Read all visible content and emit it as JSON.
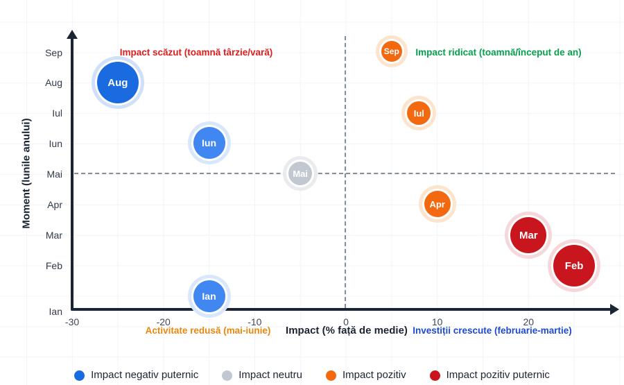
{
  "chart_data": {
    "type": "scatter",
    "title": "",
    "x_axis": {
      "label": "Impact (% față de medie)",
      "ticks": [
        -30,
        -20,
        -10,
        0,
        10,
        20
      ],
      "range": [
        -30,
        30
      ],
      "grid": true
    },
    "y_axis": {
      "label": "Moment (lunile anului)",
      "ticks": [
        "Sep",
        "Aug",
        "Iul",
        "Iun",
        "Mai",
        "Apr",
        "Mar",
        "Feb",
        "Ian"
      ],
      "grid": true
    },
    "points": [
      {
        "month": "Aug",
        "impact": -25,
        "category": "negativ_puternic",
        "size": 30
      },
      {
        "month": "Iun",
        "impact": -15,
        "category": "negativ",
        "size": 23
      },
      {
        "month": "Ian",
        "impact": -15,
        "category": "negativ",
        "size": 23
      },
      {
        "month": "Mai",
        "impact": -5,
        "category": "neutru",
        "size": 17
      },
      {
        "month": "Sep",
        "impact": 5,
        "category": "pozitiv",
        "size": 15
      },
      {
        "month": "Iul",
        "impact": 8,
        "category": "pozitiv",
        "size": 17
      },
      {
        "month": "Apr",
        "impact": 10,
        "category": "pozitiv",
        "size": 19
      },
      {
        "month": "Mar",
        "impact": 20,
        "category": "pozitiv_puternic",
        "size": 26
      },
      {
        "month": "Feb",
        "impact": 25,
        "category": "pozitiv_puternic",
        "size": 30
      }
    ],
    "reference_lines": {
      "vertical_at_x": 0,
      "horizontal_at_month": "Mai"
    },
    "legend_position": "bottom"
  },
  "categories": {
    "negativ_puternic": {
      "color": "#1a6be0",
      "halo": "#cfe0f8"
    },
    "negativ": {
      "color": "#4187f2",
      "halo": "#d9e7fc"
    },
    "neutru": {
      "color": "#c2c8d1",
      "halo": "#e9ebef"
    },
    "pozitiv": {
      "color": "#f2690f",
      "halo": "#fce4cd"
    },
    "pozitiv_puternic": {
      "color": "#c9151d",
      "halo": "#f6d7da"
    }
  },
  "annotations": {
    "top_left": {
      "text": "Impact scăzut (toamnă târzie/vară)",
      "color": "#e01d1d"
    },
    "top_right": {
      "text": "Impact ridicat (toamnă/început de an)",
      "color": "#09a04d"
    },
    "bottom_left": {
      "text": "Activitate redusă (mai-iunie)",
      "color": "#e8870e"
    },
    "bottom_right": {
      "text": "Investiții crescute (februarie-martie)",
      "color": "#1d4ad1"
    }
  },
  "legend": [
    {
      "label": "Impact negativ puternic",
      "category": "negativ_puternic"
    },
    {
      "label": "Impact neutru",
      "category": "neutru"
    },
    {
      "label": "Impact pozitiv",
      "category": "pozitiv"
    },
    {
      "label": "Impact pozitiv puternic",
      "category": "pozitiv_puternic"
    }
  ]
}
